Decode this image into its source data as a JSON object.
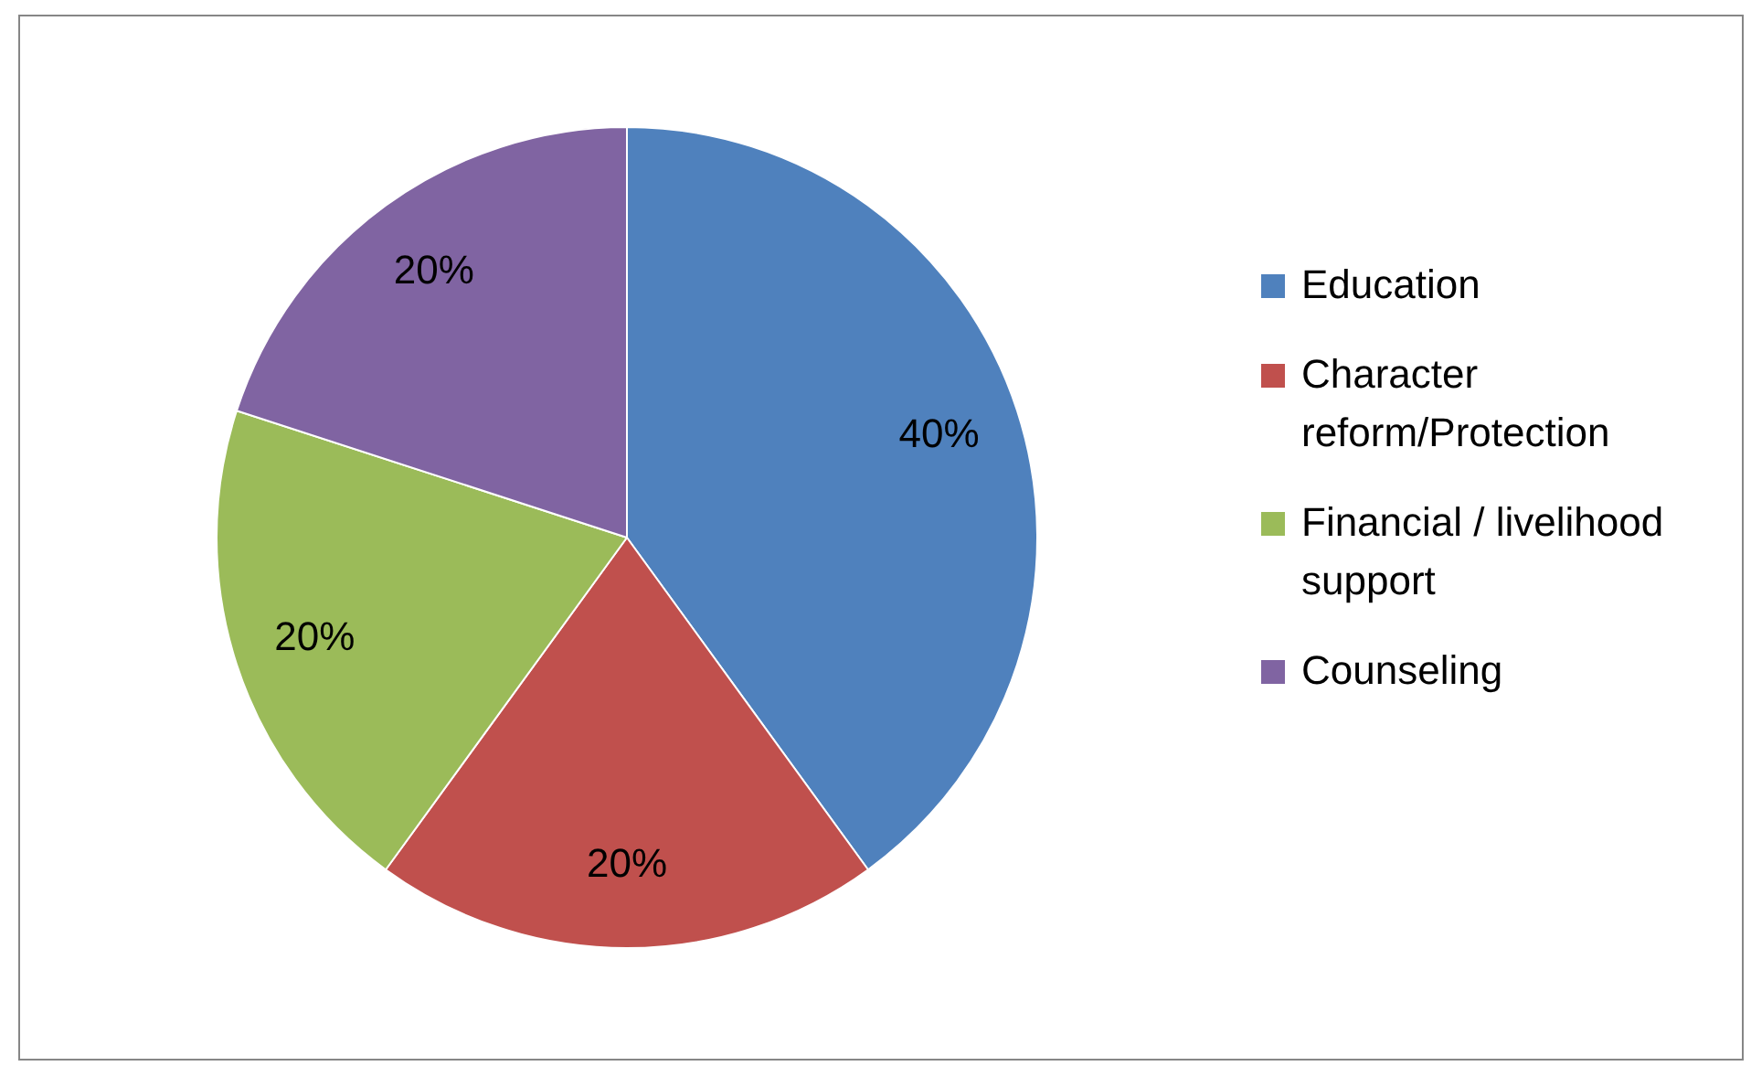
{
  "chart_data": {
    "type": "pie",
    "categories": [
      "Education",
      "Character reform/Protection",
      "Financial / livelihood support",
      "Counseling"
    ],
    "values": [
      40,
      20,
      20,
      20
    ],
    "colors": [
      "#4f81bd",
      "#c0504d",
      "#9bbb59",
      "#8064a2"
    ],
    "value_labels": [
      "40%",
      "20%",
      "20%",
      "20%"
    ],
    "legend": "right"
  }
}
